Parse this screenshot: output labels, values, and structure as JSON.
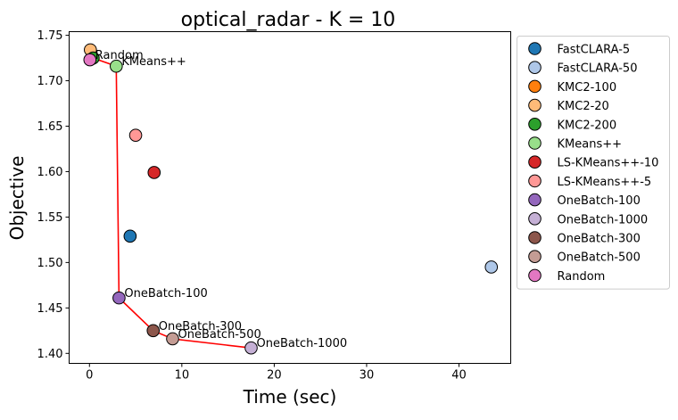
{
  "chart_data": {
    "type": "scatter",
    "title": "optical_radar - K = 10",
    "xlabel": "Time (sec)",
    "ylabel": "Objective",
    "xlim": [
      -2.2,
      45.6
    ],
    "ylim": [
      1.389,
      1.754
    ],
    "x_ticks": [
      0,
      10,
      20,
      30,
      40
    ],
    "y_ticks": [
      1.4,
      1.45,
      1.5,
      1.55,
      1.6,
      1.65,
      1.7,
      1.75
    ],
    "x_tick_labels": [
      "0",
      "10",
      "20",
      "30",
      "40"
    ],
    "y_tick_labels": [
      "1.40",
      "1.45",
      "1.50",
      "1.55",
      "1.60",
      "1.65",
      "1.70",
      "1.75"
    ],
    "grid": false,
    "legend_position": "outside right",
    "series": [
      {
        "name": "FastCLARA-5",
        "color": "#1f77b4",
        "x": 4.4,
        "y": 1.529
      },
      {
        "name": "FastCLARA-50",
        "color": "#aec7e8",
        "x": 43.5,
        "y": 1.495
      },
      {
        "name": "KMC2-100",
        "color": "#ff7f0e",
        "x": 0.2,
        "y": 1.724
      },
      {
        "name": "KMC2-20",
        "color": "#ffbb78",
        "x": 0.1,
        "y": 1.734
      },
      {
        "name": "KMC2-200",
        "color": "#2ca02c",
        "x": 0.4,
        "y": 1.725
      },
      {
        "name": "KMeans++",
        "color": "#98df8a",
        "x": 2.9,
        "y": 1.716
      },
      {
        "name": "LS-KMeans++-10",
        "color": "#d62728",
        "x": 7.0,
        "y": 1.599
      },
      {
        "name": "LS-KMeans++-5",
        "color": "#ff9896",
        "x": 5.0,
        "y": 1.64
      },
      {
        "name": "OneBatch-100",
        "color": "#9467bd",
        "x": 3.2,
        "y": 1.461
      },
      {
        "name": "OneBatch-1000",
        "color": "#c5b0d5",
        "x": 17.5,
        "y": 1.406
      },
      {
        "name": "OneBatch-300",
        "color": "#8c564b",
        "x": 6.9,
        "y": 1.425
      },
      {
        "name": "OneBatch-500",
        "color": "#c49c94",
        "x": 9.0,
        "y": 1.416
      },
      {
        "name": "Random",
        "color": "#e377c2",
        "x": 0.05,
        "y": 1.723
      }
    ],
    "pareto_front": {
      "color": "#ff0000",
      "points": [
        [
          0.05,
          1.723
        ],
        [
          0.4,
          1.725
        ],
        [
          2.9,
          1.716
        ],
        [
          3.2,
          1.461
        ],
        [
          6.9,
          1.425
        ],
        [
          9.0,
          1.416
        ],
        [
          17.5,
          1.406
        ]
      ]
    },
    "annotations": [
      {
        "text": "Random",
        "x": 0.05,
        "y": 1.723
      },
      {
        "text": "KMeans++",
        "x": 2.9,
        "y": 1.716
      },
      {
        "text": "OneBatch-100",
        "x": 3.2,
        "y": 1.461
      },
      {
        "text": "OneBatch-300",
        "x": 6.9,
        "y": 1.425
      },
      {
        "text": "OneBatch-500",
        "x": 9.0,
        "y": 1.416
      },
      {
        "text": "OneBatch-1000",
        "x": 17.5,
        "y": 1.406
      }
    ]
  }
}
